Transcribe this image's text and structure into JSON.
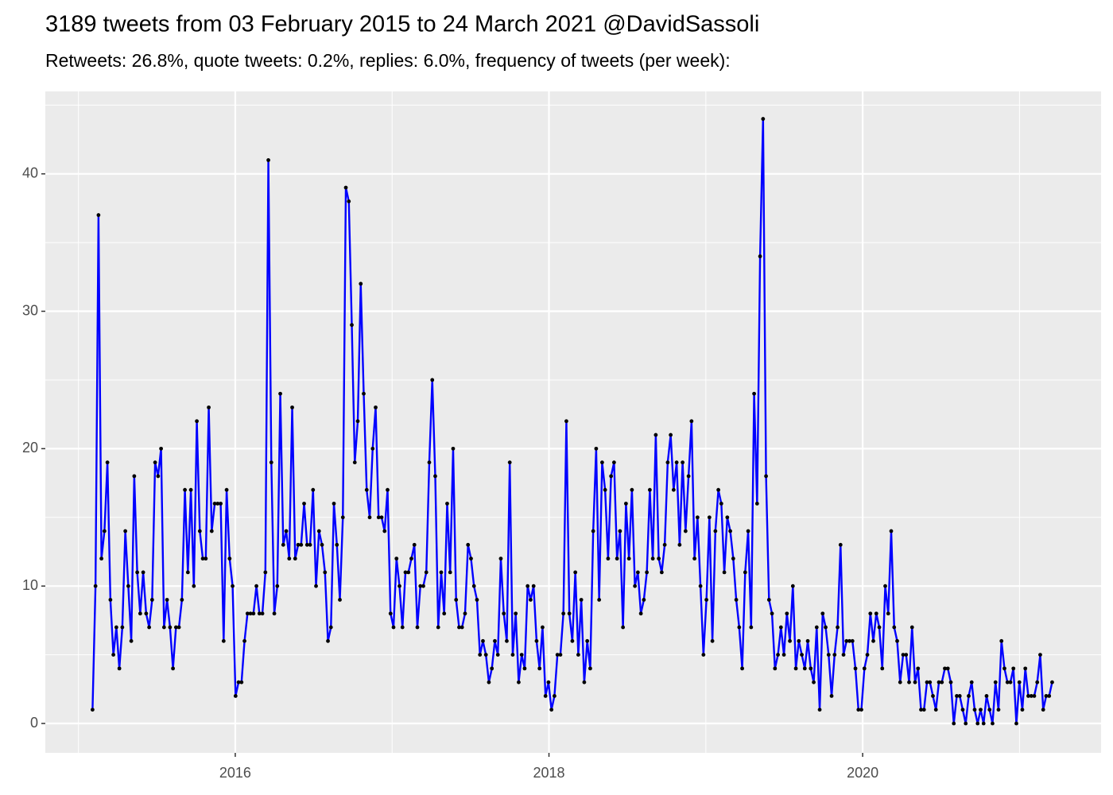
{
  "chart_data": {
    "type": "line",
    "title": "3189 tweets from 03 February 2015 to 24 March 2021 @DavidSassoli",
    "subtitle": "Retweets: 26.8%, quote tweets: 0.2%, replies: 6.0%, frequency of tweets (per week):",
    "color": "#0000ff",
    "point_color": "#000000",
    "grid": true,
    "xlim": [
      2014.789,
      2021.52
    ],
    "ylim": [
      -2.14,
      46.0
    ],
    "xticks": [
      2016,
      2018,
      2020
    ],
    "yticks": [
      0,
      10,
      20,
      30,
      40
    ],
    "x": [
      2015.09,
      2015.109,
      2015.128,
      2015.147,
      2015.166,
      2015.185,
      2015.204,
      2015.223,
      2015.242,
      2015.261,
      2015.28,
      2015.299,
      2015.318,
      2015.337,
      2015.356,
      2015.375,
      2015.394,
      2015.413,
      2015.432,
      2015.451,
      2015.47,
      2015.489,
      2015.508,
      2015.527,
      2015.546,
      2015.565,
      2015.584,
      2015.603,
      2015.622,
      2015.641,
      2015.66,
      2015.679,
      2015.698,
      2015.717,
      2015.736,
      2015.755,
      2015.774,
      2015.793,
      2015.812,
      2015.831,
      2015.85,
      2015.869,
      2015.888,
      2015.907,
      2015.926,
      2015.945,
      2015.964,
      2015.983,
      2016.002,
      2016.021,
      2016.04,
      2016.059,
      2016.078,
      2016.097,
      2016.116,
      2016.135,
      2016.154,
      2016.173,
      2016.192,
      2016.211,
      2016.23,
      2016.249,
      2016.268,
      2016.287,
      2016.306,
      2016.325,
      2016.344,
      2016.363,
      2016.382,
      2016.401,
      2016.42,
      2016.439,
      2016.458,
      2016.477,
      2016.496,
      2016.515,
      2016.534,
      2016.553,
      2016.572,
      2016.591,
      2016.61,
      2016.629,
      2016.648,
      2016.667,
      2016.686,
      2016.705,
      2016.724,
      2016.743,
      2016.762,
      2016.781,
      2016.8,
      2016.819,
      2016.838,
      2016.857,
      2016.876,
      2016.895,
      2016.914,
      2016.933,
      2016.952,
      2016.971,
      2016.99,
      2017.009,
      2017.028,
      2017.047,
      2017.066,
      2017.085,
      2017.104,
      2017.123,
      2017.142,
      2017.161,
      2017.18,
      2017.199,
      2017.218,
      2017.237,
      2017.256,
      2017.275,
      2017.294,
      2017.313,
      2017.332,
      2017.351,
      2017.37,
      2017.389,
      2017.408,
      2017.427,
      2017.446,
      2017.465,
      2017.484,
      2017.503,
      2017.522,
      2017.541,
      2017.56,
      2017.579,
      2017.598,
      2017.617,
      2017.636,
      2017.655,
      2017.674,
      2017.693,
      2017.712,
      2017.731,
      2017.75,
      2017.769,
      2017.788,
      2017.807,
      2017.826,
      2017.845,
      2017.864,
      2017.883,
      2017.902,
      2017.921,
      2017.94,
      2017.959,
      2017.978,
      2017.997,
      2018.016,
      2018.035,
      2018.054,
      2018.073,
      2018.092,
      2018.111,
      2018.13,
      2018.149,
      2018.168,
      2018.187,
      2018.206,
      2018.225,
      2018.244,
      2018.263,
      2018.282,
      2018.301,
      2018.32,
      2018.339,
      2018.358,
      2018.377,
      2018.396,
      2018.415,
      2018.434,
      2018.453,
      2018.472,
      2018.491,
      2018.51,
      2018.529,
      2018.548,
      2018.567,
      2018.586,
      2018.605,
      2018.624,
      2018.643,
      2018.662,
      2018.681,
      2018.7,
      2018.719,
      2018.738,
      2018.757,
      2018.776,
      2018.795,
      2018.814,
      2018.833,
      2018.852,
      2018.871,
      2018.89,
      2018.909,
      2018.928,
      2018.947,
      2018.966,
      2018.985,
      2019.004,
      2019.023,
      2019.042,
      2019.061,
      2019.08,
      2019.099,
      2019.118,
      2019.137,
      2019.156,
      2019.175,
      2019.194,
      2019.213,
      2019.232,
      2019.251,
      2019.27,
      2019.289,
      2019.308,
      2019.327,
      2019.346,
      2019.365,
      2019.384,
      2019.403,
      2019.422,
      2019.441,
      2019.46,
      2019.479,
      2019.498,
      2019.517,
      2019.536,
      2019.555,
      2019.574,
      2019.593,
      2019.612,
      2019.631,
      2019.65,
      2019.669,
      2019.688,
      2019.707,
      2019.726,
      2019.745,
      2019.764,
      2019.783,
      2019.802,
      2019.821,
      2019.84,
      2019.859,
      2019.878,
      2019.897,
      2019.916,
      2019.935,
      2019.954,
      2019.973,
      2019.992,
      2020.011,
      2020.03,
      2020.049,
      2020.068,
      2020.087,
      2020.106,
      2020.125,
      2020.144,
      2020.163,
      2020.182,
      2020.201,
      2020.22,
      2020.239,
      2020.258,
      2020.277,
      2020.296,
      2020.315,
      2020.334,
      2020.353,
      2020.372,
      2020.391,
      2020.41,
      2020.429,
      2020.448,
      2020.467,
      2020.486,
      2020.505,
      2020.524,
      2020.543,
      2020.562,
      2020.581,
      2020.6,
      2020.619,
      2020.638,
      2020.657,
      2020.676,
      2020.695,
      2020.714,
      2020.733,
      2020.752,
      2020.771,
      2020.79,
      2020.809,
      2020.828,
      2020.847,
      2020.866,
      2020.885,
      2020.904,
      2020.923,
      2020.942,
      2020.961,
      2020.98,
      2020.999,
      2021.018,
      2021.037,
      2021.056,
      2021.075,
      2021.094,
      2021.113,
      2021.132,
      2021.151,
      2021.17,
      2021.189,
      2021.208
    ],
    "values": [
      1,
      10,
      37,
      12,
      14,
      19,
      9,
      5,
      7,
      4,
      7,
      14,
      10,
      6,
      18,
      11,
      8,
      11,
      8,
      7,
      9,
      19,
      18,
      20,
      7,
      9,
      7,
      4,
      7,
      7,
      9,
      17,
      11,
      17,
      10,
      22,
      14,
      12,
      12,
      23,
      14,
      16,
      16,
      16,
      6,
      17,
      12,
      10,
      2,
      3,
      3,
      6,
      8,
      8,
      8,
      10,
      8,
      8,
      11,
      41,
      19,
      8,
      10,
      24,
      13,
      14,
      12,
      23,
      12,
      13,
      13,
      16,
      13,
      13,
      17,
      10,
      14,
      13,
      11,
      6,
      7,
      16,
      13,
      9,
      15,
      39,
      38,
      29,
      19,
      22,
      32,
      24,
      17,
      15,
      20,
      23,
      15,
      15,
      14,
      17,
      8,
      7,
      12,
      10,
      7,
      11,
      11,
      12,
      13,
      7,
      10,
      10,
      11,
      19,
      25,
      18,
      7,
      11,
      8,
      16,
      11,
      20,
      9,
      7,
      7,
      8,
      13,
      12,
      10,
      9,
      5,
      6,
      5,
      3,
      4,
      6,
      5,
      12,
      8,
      6,
      19,
      5,
      8,
      3,
      5,
      4,
      10,
      9,
      10,
      6,
      4,
      7,
      2,
      3,
      1,
      2,
      5,
      5,
      8,
      22,
      8,
      6,
      11,
      5,
      9,
      3,
      6,
      4,
      14,
      20,
      9,
      19,
      17,
      12,
      18,
      19,
      12,
      14,
      7,
      16,
      12,
      17,
      10,
      11,
      8,
      9,
      11,
      17,
      12,
      21,
      12,
      11,
      13,
      19,
      21,
      17,
      19,
      13,
      19,
      14,
      18,
      22,
      12,
      15,
      10,
      5,
      9,
      15,
      6,
      14,
      17,
      16,
      11,
      15,
      14,
      12,
      9,
      7,
      4,
      11,
      14,
      7,
      24,
      16,
      34,
      44,
      18,
      9,
      8,
      4,
      5,
      7,
      5,
      8,
      6,
      10,
      4,
      6,
      5,
      4,
      6,
      4,
      3,
      7,
      1,
      8,
      7,
      5,
      2,
      5,
      7,
      13,
      5,
      6,
      6,
      6,
      4,
      1,
      1,
      4,
      5,
      8,
      6,
      8,
      7,
      4,
      10,
      8,
      14,
      7,
      6,
      3,
      5,
      5,
      3,
      7,
      3,
      4,
      1,
      1,
      3,
      3,
      2,
      1,
      3,
      3,
      4,
      4,
      3,
      0,
      2,
      2,
      1,
      0,
      2,
      3,
      1,
      0,
      1,
      0,
      2,
      1,
      0,
      3,
      1,
      6,
      4,
      3,
      3,
      4,
      0,
      3,
      1,
      4,
      2,
      2,
      2,
      3,
      5,
      1,
      2,
      2,
      3
    ]
  }
}
